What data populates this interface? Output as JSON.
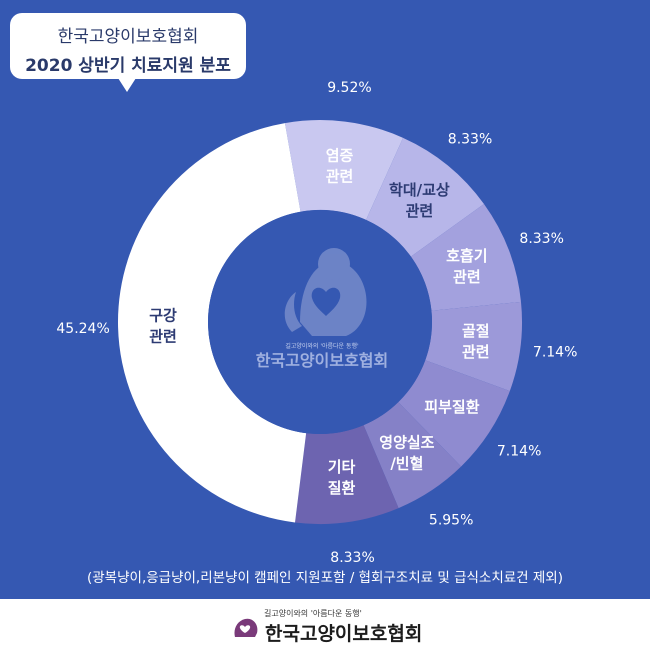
{
  "header": {
    "org": "한국고양이보호협회",
    "title": "2020 상반기 치료지원 분포"
  },
  "chart_data": {
    "type": "pie",
    "title": "2020 상반기 치료지원 분포",
    "unit": "%",
    "slices": [
      {
        "label": [
          "염증",
          "관련"
        ],
        "value": 9.52,
        "display": "9.52%",
        "color": "#c9c8f0",
        "text_color": "#ffffff"
      },
      {
        "label": [
          "학대/교상",
          "관련"
        ],
        "value": 8.33,
        "display": "8.33%",
        "color": "#b7b6e9",
        "text_color": "#2d3b73"
      },
      {
        "label": [
          "호흡기",
          "관련"
        ],
        "value": 8.33,
        "display": "8.33%",
        "color": "#a3a1de",
        "text_color": "#ffffff"
      },
      {
        "label": [
          "골절",
          "관련"
        ],
        "value": 7.14,
        "display": "7.14%",
        "color": "#9c99d9",
        "text_color": "#ffffff"
      },
      {
        "label": [
          "피부질환"
        ],
        "value": 7.14,
        "display": "7.14%",
        "color": "#8f8bd0",
        "text_color": "#ffffff"
      },
      {
        "label": [
          "영양실조",
          "/빈혈"
        ],
        "value": 5.95,
        "display": "5.95%",
        "color": "#8581c7",
        "text_color": "#ffffff"
      },
      {
        "label": [
          "기타",
          "질환"
        ],
        "value": 8.33,
        "display": "8.33%",
        "color": "#6d64b0",
        "text_color": "#ffffff"
      },
      {
        "label": [
          "구강",
          "관련"
        ],
        "value": 45.24,
        "display": "45.24%",
        "color": "#ffffff",
        "text_color": "#2d3b73"
      }
    ]
  },
  "center_brand": {
    "tagline": "길고양이와의 '아름다운 동행'",
    "name": "한국고양이보호협회"
  },
  "note": "(광복냥이,응급냥이,리본냥이 캠페인 지원포함 / 협회구조치료 및 급식소치료건 제외)",
  "footer": {
    "tagline": "길고양이와의 '아름다운 동행'",
    "name": "한국고양이보호협회"
  },
  "colors": {
    "background": "#3558b2",
    "text_dark": "#2a3a6a"
  }
}
